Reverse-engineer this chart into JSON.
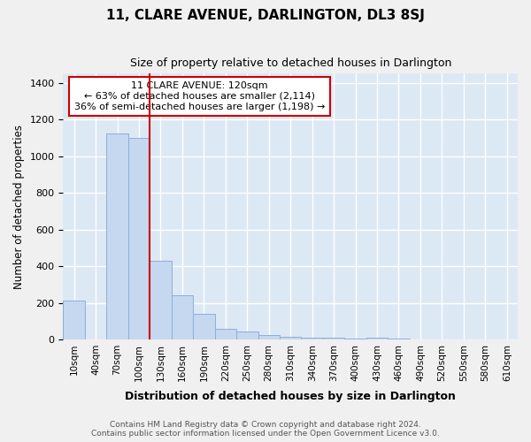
{
  "title": "11, CLARE AVENUE, DARLINGTON, DL3 8SJ",
  "subtitle": "Size of property relative to detached houses in Darlington",
  "xlabel": "Distribution of detached houses by size in Darlington",
  "ylabel": "Number of detached properties",
  "bar_color": "#c5d8ef",
  "bar_edge_color": "#8ab0d8",
  "background_color": "#dde8f5",
  "grid_color": "#ffffff",
  "property_line_color": "#cc0000",
  "annotation_box_facecolor": "#ffffff",
  "annotation_border_color": "#cc0000",
  "categories": [
    "10sqm",
    "40sqm",
    "70sqm",
    "100sqm",
    "130sqm",
    "160sqm",
    "190sqm",
    "220sqm",
    "250sqm",
    "280sqm",
    "310sqm",
    "340sqm",
    "370sqm",
    "400sqm",
    "430sqm",
    "460sqm",
    "490sqm",
    "520sqm",
    "550sqm",
    "580sqm",
    "610sqm"
  ],
  "values": [
    210,
    0,
    1125,
    1100,
    430,
    240,
    140,
    60,
    45,
    25,
    15,
    10,
    10,
    5,
    10,
    5,
    0,
    0,
    0,
    0,
    0
  ],
  "property_line_x": 4,
  "annotation_lines": [
    "11 CLARE AVENUE: 120sqm",
    "← 63% of detached houses are smaller (2,114)",
    "36% of semi-detached houses are larger (1,198) →"
  ],
  "footer_line1": "Contains HM Land Registry data © Crown copyright and database right 2024.",
  "footer_line2": "Contains public sector information licensed under the Open Government Licence v3.0.",
  "ylim": [
    0,
    1450
  ],
  "yticks": [
    0,
    200,
    400,
    600,
    800,
    1000,
    1200,
    1400
  ],
  "fig_width": 6.0,
  "fig_height": 5.0,
  "fig_bgcolor": "#f0f0f0"
}
